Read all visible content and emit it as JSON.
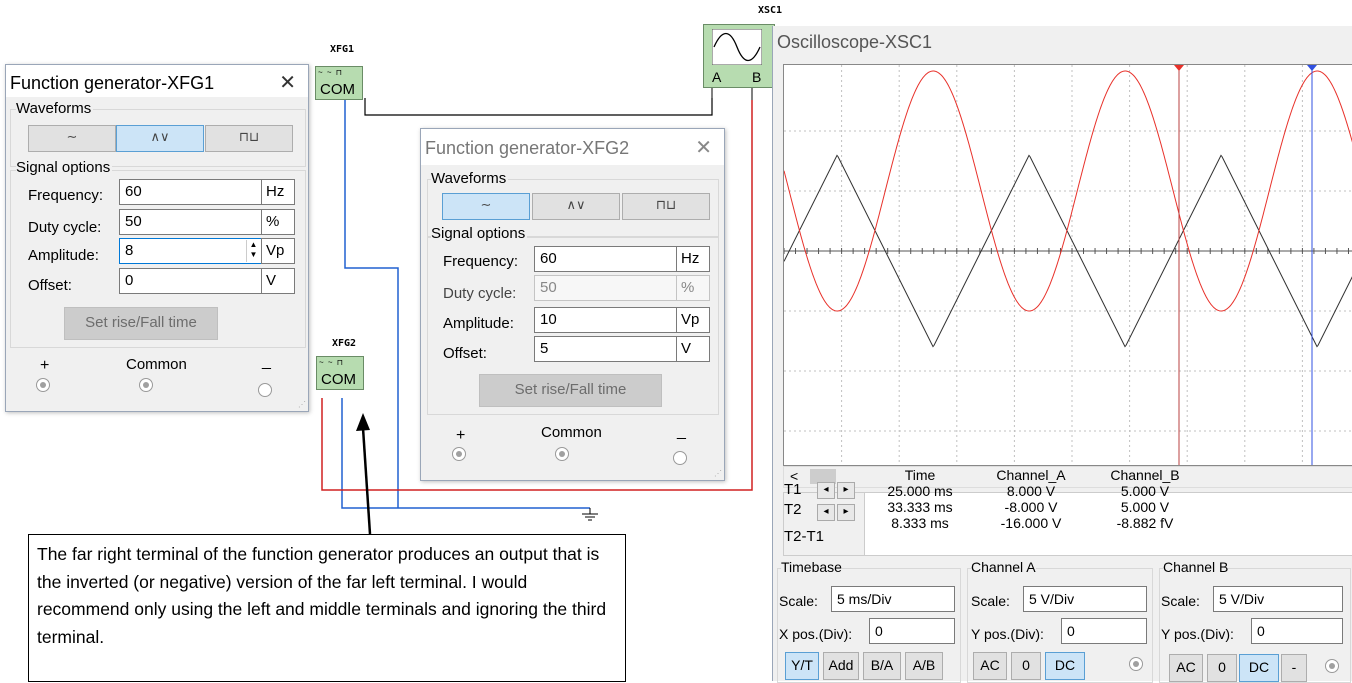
{
  "xsc1_label": "XSC1",
  "xfg1_label": "XFG1",
  "xfg2_label": "XFG2",
  "fg_block_com": "COM",
  "fg_block_icons": "~ ~ ⊓",
  "scope_channel_a": "A",
  "scope_channel_b": "B",
  "fg1": {
    "title": "Function generator-XFG1",
    "waveforms_label": "Waveforms",
    "signal_options_label": "Signal options",
    "waveforms": [
      "∼",
      "∧∨",
      "⊓⊔"
    ],
    "selected_waveform": "triangle",
    "rows": [
      {
        "label": "Frequency:",
        "value": "60",
        "unit": "Hz"
      },
      {
        "label": "Duty cycle:",
        "value": "50",
        "unit": "%"
      },
      {
        "label": "Amplitude:",
        "value": "8",
        "unit": "Vp"
      },
      {
        "label": "Offset:",
        "value": "0",
        "unit": "V"
      }
    ],
    "set_rise_fall": "Set rise/Fall time",
    "plus": "+",
    "common": "Common",
    "minus": "_"
  },
  "fg2": {
    "title": "Function generator-XFG2",
    "waveforms_label": "Waveforms",
    "signal_options_label": "Signal options",
    "waveforms": [
      "∼",
      "∧∨",
      "⊓⊔"
    ],
    "selected_waveform": "sine",
    "rows": [
      {
        "label": "Frequency:",
        "value": "60",
        "unit": "Hz"
      },
      {
        "label": "Duty cycle:",
        "value": "50",
        "unit": "%"
      },
      {
        "label": "Amplitude:",
        "value": "10",
        "unit": "Vp"
      },
      {
        "label": "Offset:",
        "value": "5",
        "unit": "V"
      }
    ],
    "set_rise_fall": "Set rise/Fall time",
    "plus": "+",
    "common": "Common",
    "minus": "_"
  },
  "osc": {
    "title": "Oscilloscope-XSC1",
    "scroll_left": "<",
    "measure": {
      "headers": [
        "Time",
        "Channel_A",
        "Channel_B"
      ],
      "rows": [
        {
          "label": "T1",
          "time": "25.000 ms",
          "a": "8.000 V",
          "b": "5.000 V"
        },
        {
          "label": "T2",
          "time": "33.333 ms",
          "a": "-8.000 V",
          "b": "5.000 V"
        },
        {
          "label": "T2-T1",
          "time": "8.333 ms",
          "a": "-16.000 V",
          "b": "-8.882 fV"
        }
      ]
    },
    "timebase": {
      "label": "Timebase",
      "scale_label": "Scale:",
      "scale": "5 ms/Div",
      "pos_label": "X pos.(Div):",
      "pos": "0"
    },
    "channel_a": {
      "label": "Channel A",
      "scale_label": "Scale:",
      "scale": "5  V/Div",
      "pos_label": "Y pos.(Div):",
      "pos": "0"
    },
    "channel_b": {
      "label": "Channel B",
      "scale_label": "Scale:",
      "scale": "5  V/Div",
      "pos_label": "Y pos.(Div):",
      "pos": "0"
    },
    "timebase_buttons": [
      "Y/T",
      "Add",
      "B/A",
      "A/B"
    ],
    "channel_a_buttons": [
      "AC",
      "0",
      "DC"
    ],
    "channel_b_buttons": [
      "AC",
      "0",
      "DC",
      "-"
    ],
    "colors": {
      "channel_a": "#e8312a",
      "channel_b": "#333333",
      "cursor_t1": "#b84040",
      "cursor_t2": "#3050e0"
    }
  },
  "annotation": "The far right terminal of the function generator produces an output that is the inverted (or negative) version of the far left terminal. I would recommend only using the left and middle terminals and ignoring the third terminal.",
  "wire_colors": {
    "blue": "#2060d0",
    "red": "#d02020",
    "black": "#000000"
  }
}
